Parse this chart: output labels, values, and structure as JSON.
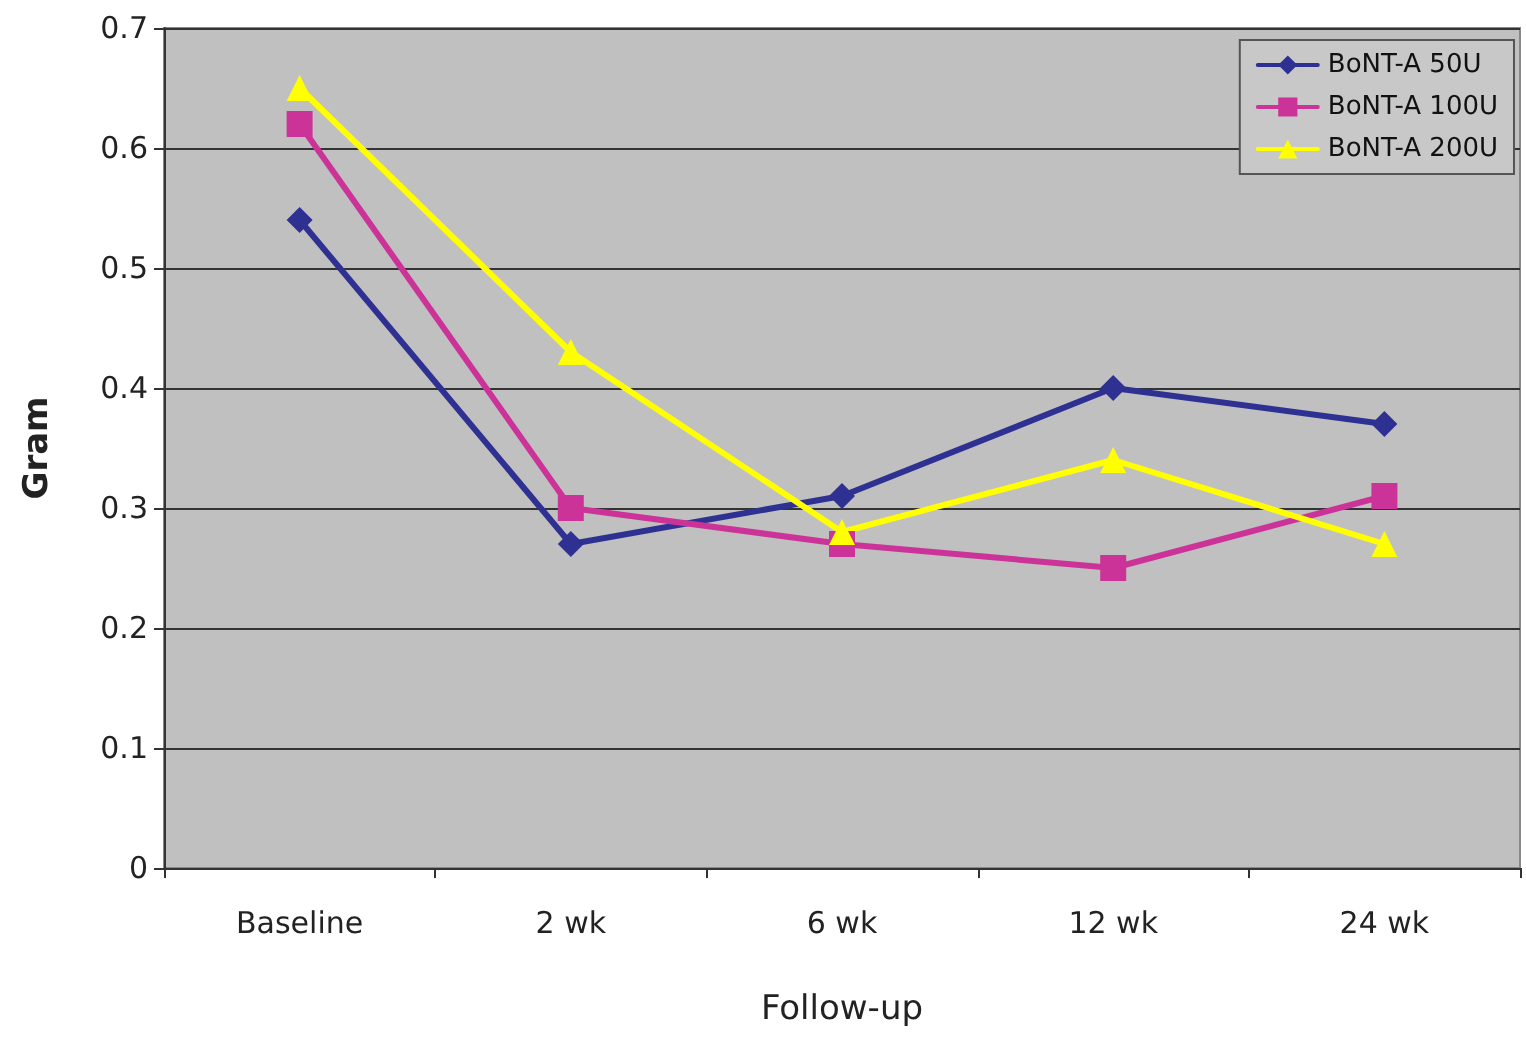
{
  "chart_data": {
    "type": "line",
    "xlabel": "Follow-up",
    "ylabel": "Gram",
    "categories": [
      "Baseline",
      "2 wk",
      "6 wk",
      "12 wk",
      "24 wk"
    ],
    "series": [
      {
        "name": "BoNT-A 50U",
        "color": "#2e3192",
        "marker": "diamond",
        "values": [
          0.54,
          0.27,
          0.31,
          0.4,
          0.37
        ]
      },
      {
        "name": "BoNT-A 100U",
        "color": "#cc3399",
        "marker": "square",
        "values": [
          0.62,
          0.3,
          0.27,
          0.25,
          0.31
        ]
      },
      {
        "name": "BoNT-A 200U",
        "color": "#ffff00",
        "marker": "triangle",
        "values": [
          0.65,
          0.43,
          0.28,
          0.34,
          0.27
        ]
      }
    ],
    "ylim": [
      0,
      0.7
    ],
    "yticks": [
      0,
      0.1,
      0.2,
      0.3,
      0.4,
      0.5,
      0.6,
      0.7
    ],
    "grid": "y",
    "legend": "top right",
    "line_style": "solid"
  }
}
